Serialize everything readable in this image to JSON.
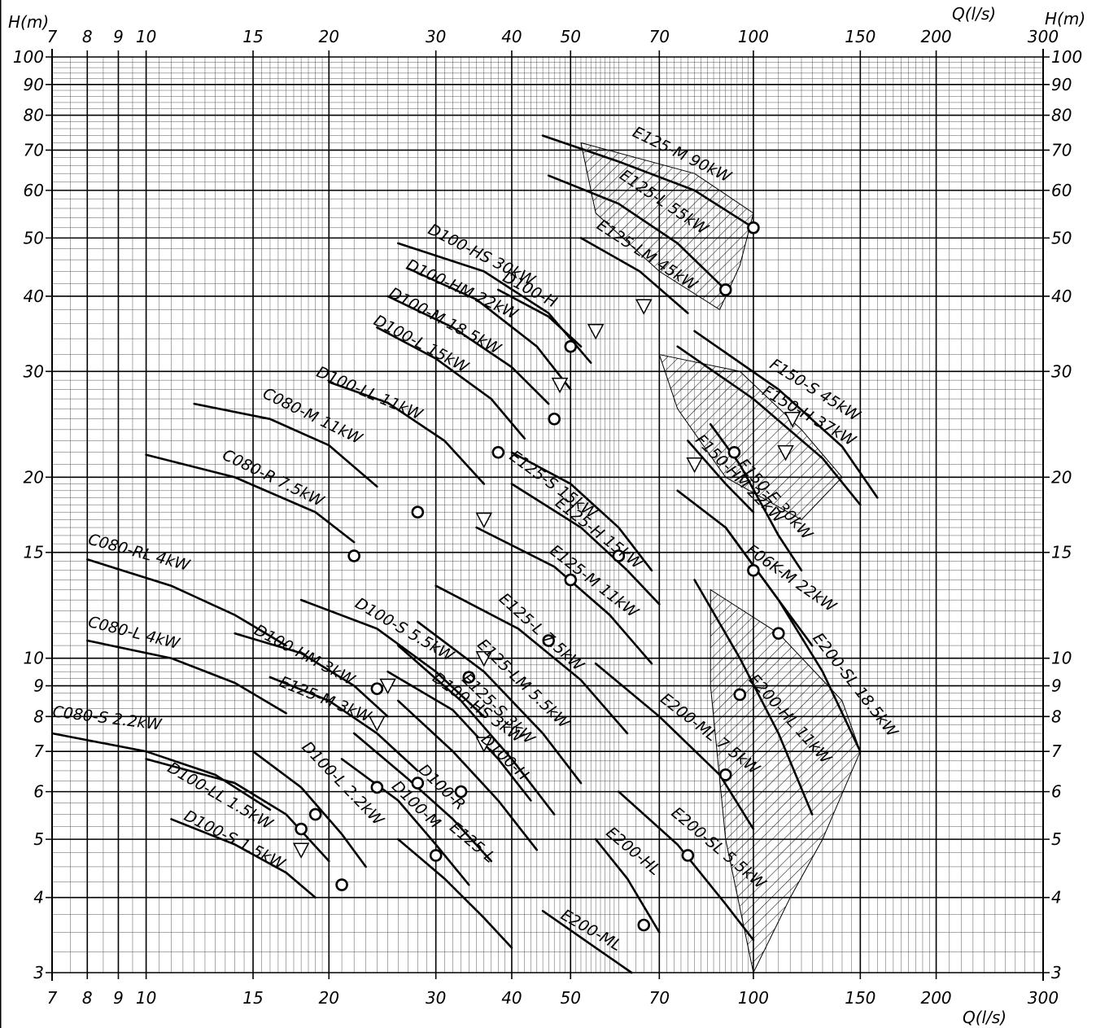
{
  "chart_data": {
    "type": "line",
    "title": "",
    "x_scale": "log",
    "y_scale": "log",
    "xlim": [
      7,
      300
    ],
    "ylim": [
      3,
      100
    ],
    "xlabel": "Q(l/s)",
    "ylabel": "H(m)",
    "ylabel_right": "H(m)",
    "x_ticks": [
      7,
      8,
      9,
      10,
      15,
      20,
      30,
      40,
      50,
      70,
      100,
      150,
      200,
      300
    ],
    "y_ticks": [
      3,
      4,
      5,
      6,
      7,
      8,
      9,
      10,
      15,
      20,
      30,
      40,
      50,
      60,
      70,
      80,
      90,
      100
    ],
    "grid": true,
    "series": [
      {
        "name": "C080-S 2.2kW",
        "points": [
          [
            7,
            7.5
          ],
          [
            10,
            7.0
          ],
          [
            13,
            6.4
          ],
          [
            16,
            5.6
          ]
        ],
        "label_at": [
          7,
          8.0
        ],
        "label_angle": 7
      },
      {
        "name": "C080-L 4kW",
        "points": [
          [
            8,
            10.7
          ],
          [
            11,
            10.0
          ],
          [
            14,
            9.1
          ],
          [
            17,
            8.1
          ]
        ],
        "label_at": [
          8,
          11.3
        ],
        "label_angle": 14
      },
      {
        "name": "C080-RL 4kW",
        "points": [
          [
            8,
            14.6
          ],
          [
            11,
            13.2
          ],
          [
            14,
            11.8
          ],
          [
            17,
            10.5
          ]
        ],
        "label_at": [
          8,
          15.5
        ],
        "label_angle": 15
      },
      {
        "name": "C080-R 7.5kW",
        "points": [
          [
            10,
            21.8
          ],
          [
            14,
            20.0
          ],
          [
            19,
            17.5
          ],
          [
            22,
            15.6
          ]
        ],
        "label_at": [
          13.3,
          21.5
        ],
        "label_angle": 26
      },
      {
        "name": "C080-M 11kW",
        "points": [
          [
            12,
            26.5
          ],
          [
            16,
            25.0
          ],
          [
            20,
            22.6
          ],
          [
            24,
            19.3
          ]
        ],
        "label_at": [
          15.5,
          27.2
        ],
        "label_angle": 26
      },
      {
        "name": "D100-LL 11kW",
        "points": [
          [
            20,
            28.8
          ],
          [
            25,
            26.6
          ],
          [
            31,
            23.0
          ],
          [
            36,
            19.5
          ]
        ],
        "label_at": [
          19,
          29.5
        ],
        "label_angle": 23
      },
      {
        "name": "D100-L 15kW",
        "points": [
          [
            24,
            35.5
          ],
          [
            30,
            31.5
          ],
          [
            37,
            27.0
          ],
          [
            42,
            23.2
          ]
        ],
        "label_at": [
          23.6,
          36.0
        ],
        "label_angle": 28
      },
      {
        "name": "D100-M 18.5kW",
        "points": [
          [
            25,
            40.0
          ],
          [
            32,
            35.5
          ],
          [
            40,
            30.5
          ],
          [
            46,
            26.5
          ]
        ],
        "label_at": [
          25,
          40.0
        ],
        "label_angle": 28
      },
      {
        "name": "D100-HM 22kW",
        "points": [
          [
            27,
            44.5
          ],
          [
            35,
            39.5
          ],
          [
            44,
            33.0
          ],
          [
            50,
            28.0
          ]
        ],
        "label_at": [
          26.7,
          44.5
        ],
        "label_angle": 25
      },
      {
        "name": "D100-HS 30kW",
        "points": [
          [
            26,
            49.0
          ],
          [
            36,
            44.0
          ],
          [
            46,
            37.5
          ],
          [
            54,
            31.0
          ]
        ],
        "label_at": [
          29,
          51.0
        ],
        "label_angle": 27
      },
      {
        "name": "D100-H",
        "points": [
          [
            38,
            41.0
          ],
          [
            46,
            37.0
          ],
          [
            52,
            33.0
          ]
        ],
        "label_at": [
          38.5,
          42.5
        ],
        "label_angle": 28
      },
      {
        "name": "E125-M 90kW",
        "points": [
          [
            45,
            74.0
          ],
          [
            60,
            67.0
          ],
          [
            80,
            60.0
          ],
          [
            100,
            52.0
          ]
        ],
        "label_at": [
          63,
          74.0
        ],
        "label_angle": 26
      },
      {
        "name": "E125-L 55kW",
        "points": [
          [
            46,
            63.5
          ],
          [
            60,
            57.0
          ],
          [
            75,
            49.0
          ],
          [
            90,
            41.0
          ]
        ],
        "label_at": [
          60,
          63.0
        ],
        "label_angle": 34
      },
      {
        "name": "E125-LM 45kW",
        "points": [
          [
            52,
            50.0
          ],
          [
            65,
            44.0
          ],
          [
            78,
            37.5
          ]
        ],
        "label_at": [
          55,
          52.0
        ],
        "label_angle": 33
      },
      {
        "name": "F150-S 45kW",
        "points": [
          [
            80,
            35.0
          ],
          [
            110,
            28.0
          ],
          [
            140,
            22.5
          ],
          [
            160,
            18.5
          ]
        ],
        "label_at": [
          106,
          30.5
        ],
        "label_angle": 32
      },
      {
        "name": "F150-H 37kW",
        "points": [
          [
            75,
            33.0
          ],
          [
            100,
            27.0
          ],
          [
            130,
            21.5
          ],
          [
            150,
            18.0
          ]
        ],
        "label_at": [
          103,
          27.5
        ],
        "label_angle": 30
      },
      {
        "name": "F150-HM 22kW",
        "points": [
          [
            78,
            23.0
          ],
          [
            90,
            19.5
          ],
          [
            100,
            17.5
          ]
        ],
        "label_at": [
          80,
          23.0
        ],
        "label_angle": 45
      },
      {
        "name": "F150-E 30kW",
        "points": [
          [
            85,
            24.5
          ],
          [
            95,
            21.0
          ],
          [
            110,
            16.0
          ],
          [
            120,
            14.0
          ]
        ],
        "label_at": [
          94,
          21.0
        ],
        "label_angle": 48
      },
      {
        "name": "F06K-M 22kW",
        "points": [
          [
            75,
            19.0
          ],
          [
            90,
            16.5
          ],
          [
            110,
            12.5
          ],
          [
            125,
            10.5
          ]
        ],
        "label_at": [
          97,
          15.0
        ],
        "label_angle": 35
      },
      {
        "name": "E200-SL 18.5kW",
        "points": [
          [
            90,
            16.5
          ],
          [
            110,
            12.5
          ],
          [
            130,
            9.5
          ],
          [
            150,
            7.0
          ]
        ],
        "label_at": [
          125,
          10.8
        ],
        "label_angle": 52
      },
      {
        "name": "E200-HL 11kW",
        "points": [
          [
            80,
            13.5
          ],
          [
            95,
            10.0
          ],
          [
            110,
            7.5
          ],
          [
            125,
            5.5
          ]
        ],
        "label_at": [
          98,
          9.2
        ],
        "label_angle": 48
      },
      {
        "name": "E200-ML 7.5kW",
        "points": [
          [
            55,
            9.8
          ],
          [
            70,
            8.0
          ],
          [
            88,
            6.4
          ],
          [
            100,
            5.2
          ]
        ],
        "label_at": [
          70,
          8.5
        ],
        "label_angle": 38
      },
      {
        "name": "E200-SL 5.5kW",
        "points": [
          [
            60,
            6.0
          ],
          [
            75,
            4.9
          ],
          [
            90,
            3.9
          ],
          [
            100,
            3.4
          ]
        ],
        "label_at": [
          73,
          5.5
        ],
        "label_angle": 40
      },
      {
        "name": "E200-HL",
        "points": [
          [
            55,
            5.0
          ],
          [
            62,
            4.3
          ],
          [
            70,
            3.5
          ]
        ],
        "label_at": [
          57,
          5.1
        ],
        "label_angle": 40
      },
      {
        "name": "E200-ML",
        "points": [
          [
            45,
            3.8
          ],
          [
            55,
            3.3
          ],
          [
            63,
            3.0
          ]
        ],
        "label_at": [
          48,
          3.7
        ],
        "label_angle": 30
      },
      {
        "name": "E125-S 15kW",
        "points": [
          [
            40,
            22.0
          ],
          [
            50,
            19.5
          ],
          [
            60,
            16.5
          ],
          [
            68,
            14.0
          ]
        ],
        "label_at": [
          39.5,
          21.5
        ],
        "label_angle": 36
      },
      {
        "name": "E125-H 15kW",
        "points": [
          [
            40,
            19.5
          ],
          [
            52,
            16.5
          ],
          [
            62,
            14.0
          ],
          [
            70,
            12.3
          ]
        ],
        "label_at": [
          47,
          18.0
        ],
        "label_angle": 38
      },
      {
        "name": "E125-M 11kW",
        "points": [
          [
            35,
            16.5
          ],
          [
            47,
            14.2
          ],
          [
            58,
            11.8
          ],
          [
            68,
            9.8
          ]
        ],
        "label_at": [
          46,
          15.0
        ],
        "label_angle": 38
      },
      {
        "name": "E125-L 7.5kW",
        "points": [
          [
            30,
            13.2
          ],
          [
            41,
            11.2
          ],
          [
            52,
            9.2
          ],
          [
            62,
            7.5
          ]
        ],
        "label_at": [
          38,
          12.5
        ],
        "label_angle": 42
      },
      {
        "name": "E125-LM 5.5kW",
        "points": [
          [
            28,
            11.5
          ],
          [
            36,
            9.5
          ],
          [
            45,
            7.5
          ],
          [
            52,
            6.2
          ]
        ],
        "label_at": [
          35,
          10.5
        ],
        "label_angle": 44
      },
      {
        "name": "E125-S 3kW",
        "points": [
          [
            26,
            10.5
          ],
          [
            33,
            8.5
          ],
          [
            40,
            6.8
          ],
          [
            47,
            5.5
          ]
        ],
        "label_at": [
          33,
          9.2
        ],
        "label_angle": 44
      },
      {
        "name": "D100-H",
        "points": [
          [
            26,
            8.5
          ],
          [
            32,
            7.0
          ],
          [
            38,
            5.8
          ],
          [
            44,
            4.8
          ]
        ],
        "label_at": [
          35.5,
          7.3
        ],
        "label_angle": 44
      },
      {
        "name": "D100-S 5.5kW",
        "points": [
          [
            18,
            12.5
          ],
          [
            24,
            11.2
          ],
          [
            30,
            9.5
          ],
          [
            36,
            8.0
          ]
        ],
        "label_at": [
          22,
          12.2
        ],
        "label_angle": 30
      },
      {
        "name": "D100-HS 3kW",
        "points": [
          [
            25,
            9.5
          ],
          [
            32,
            8.2
          ],
          [
            38,
            6.8
          ],
          [
            43,
            5.8
          ]
        ],
        "label_at": [
          29.5,
          9.2
        ],
        "label_angle": 36
      },
      {
        "name": "D100-HM 3kW",
        "points": [
          [
            14,
            11.0
          ],
          [
            18,
            10.2
          ],
          [
            22,
            9.0
          ],
          [
            25,
            8.0
          ]
        ],
        "label_at": [
          15,
          11.0
        ],
        "label_angle": 28
      },
      {
        "name": "E125-M 3kW",
        "points": [
          [
            16,
            9.3
          ],
          [
            20,
            8.5
          ],
          [
            24,
            7.5
          ],
          [
            28,
            6.5
          ]
        ],
        "label_at": [
          16.5,
          9.0
        ],
        "label_angle": 22
      },
      {
        "name": "D100-R",
        "points": [
          [
            22,
            7.5
          ],
          [
            27,
            6.3
          ],
          [
            32,
            5.4
          ],
          [
            37,
            4.6
          ]
        ],
        "label_at": [
          28,
          6.5
        ],
        "label_angle": 44
      },
      {
        "name": "D100-M",
        "points": [
          [
            21,
            6.8
          ],
          [
            26,
            5.8
          ],
          [
            30,
            4.9
          ],
          [
            34,
            4.2
          ]
        ],
        "label_at": [
          25.3,
          6.1
        ],
        "label_angle": 44
      },
      {
        "name": "D100-L 2.2kW",
        "points": [
          [
            15,
            7.0
          ],
          [
            18,
            6.1
          ],
          [
            21,
            5.1
          ],
          [
            23,
            4.5
          ]
        ],
        "label_at": [
          18,
          7.1
        ],
        "label_angle": 46
      },
      {
        "name": "E125-L",
        "points": [
          [
            26,
            5.0
          ],
          [
            31,
            4.3
          ],
          [
            36,
            3.7
          ],
          [
            40,
            3.3
          ]
        ],
        "label_at": [
          31.5,
          5.2
        ],
        "label_angle": 40
      },
      {
        "name": "D100-LL 1.5kW",
        "points": [
          [
            10,
            6.8
          ],
          [
            14,
            6.2
          ],
          [
            17,
            5.5
          ],
          [
            20,
            4.6
          ]
        ],
        "label_at": [
          10.8,
          6.5
        ],
        "label_angle": 30
      },
      {
        "name": "D100-S 1.5kW",
        "points": [
          [
            11,
            5.4
          ],
          [
            14,
            4.9
          ],
          [
            17,
            4.4
          ],
          [
            19,
            4.0
          ]
        ],
        "label_at": [
          11.5,
          5.4
        ],
        "label_angle": 27
      }
    ],
    "operating_points": [
      [
        100,
        52
      ],
      [
        90,
        41
      ],
      [
        50,
        33
      ],
      [
        47,
        25
      ],
      [
        38,
        22
      ],
      [
        28,
        17.5
      ],
      [
        22,
        14.8
      ],
      [
        93,
        22
      ],
      [
        100,
        14
      ],
      [
        110,
        11
      ],
      [
        60,
        14.8
      ],
      [
        50,
        13.5
      ],
      [
        46,
        10.7
      ],
      [
        34,
        9.3
      ],
      [
        24,
        8.9
      ],
      [
        95,
        8.7
      ],
      [
        90,
        6.4
      ],
      [
        78,
        4.7
      ],
      [
        66,
        3.6
      ],
      [
        33,
        6.0
      ],
      [
        28,
        6.2
      ],
      [
        24,
        6.1
      ],
      [
        19,
        5.5
      ],
      [
        18,
        5.2
      ],
      [
        30,
        4.7
      ],
      [
        21,
        4.2
      ]
    ],
    "triangle_markers": [
      [
        55,
        35
      ],
      [
        48,
        28.5
      ],
      [
        80,
        21
      ],
      [
        116,
        25
      ],
      [
        113,
        22
      ],
      [
        36,
        17
      ],
      [
        66,
        38.5
      ],
      [
        36,
        10
      ],
      [
        25,
        9
      ],
      [
        24,
        7.8
      ],
      [
        36,
        7.2
      ],
      [
        18,
        4.8
      ]
    ]
  }
}
